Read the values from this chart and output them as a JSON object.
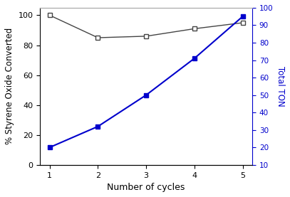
{
  "cycles": [
    1,
    2,
    3,
    4,
    5
  ],
  "conversion": [
    100,
    85,
    86,
    91,
    95
  ],
  "ton": [
    20,
    32,
    50,
    71,
    95
  ],
  "left_ylim": [
    0,
    105
  ],
  "right_ylim": [
    10,
    100
  ],
  "left_yticks": [
    0,
    20,
    40,
    60,
    80,
    100
  ],
  "right_yticks": [
    10,
    20,
    30,
    40,
    50,
    60,
    70,
    80,
    90,
    100
  ],
  "xticks": [
    1,
    2,
    3,
    4,
    5
  ],
  "xlabel": "Number of cycles",
  "ylabel_left": "% Styrene Oxide Converted",
  "ylabel_right": "Total TON",
  "black_color": "#444444",
  "blue_color": "#0000CC",
  "bg_color": "#ffffff",
  "title": ""
}
